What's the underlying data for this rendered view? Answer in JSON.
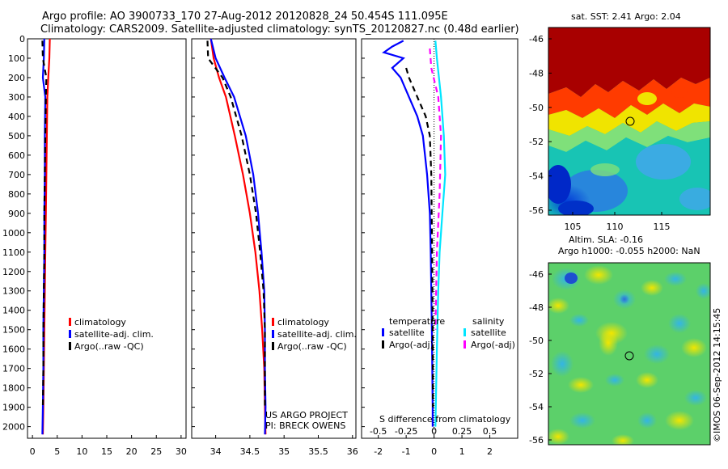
{
  "header": {
    "line1": "Argo profile: AO 3900733_170 27-Aug-2012 20120828_24 50.454S 111.095E",
    "line2": "Climatology: CARS2009. Satellite-adjusted climatology: synTS_20120827.nc (0.48d earlier)"
  },
  "colors": {
    "climatology": "#ff0000",
    "satellite": "#0000ff",
    "argo": "#000000",
    "salinity_satellite": "#00e5ff",
    "salinity_argo": "#ff00ff"
  },
  "depth_axis": {
    "ylim": [
      0,
      2060
    ],
    "ticks": [
      0,
      100,
      200,
      300,
      400,
      500,
      600,
      700,
      800,
      900,
      1000,
      1100,
      1200,
      1300,
      1400,
      1500,
      1600,
      1700,
      1800,
      1900,
      2000
    ]
  },
  "panels": {
    "temperature": {
      "legend": [
        "climatology",
        "satellite-adj. clim.",
        "Argo(..raw -QC)"
      ]
    },
    "salinity": {
      "legend": [
        "climatology",
        "satellite-adj. clim.",
        "Argo(..raw -QC)"
      ],
      "credit1": "US ARGO PROJECT",
      "credit2": "PI: BRECK OWENS"
    },
    "difference": {
      "legend_temperature_title": "temperature",
      "legend_temperature": [
        "satellite",
        "Argo(-adj)"
      ],
      "legend_salinity_title": "salinity",
      "legend_salinity": [
        "satellite",
        "Argo(-adj)"
      ],
      "s_axis_label": "S difference from climatology"
    }
  },
  "maps": {
    "sst_title": "sat. SST: 2.41  Argo: 2.04",
    "sla_title1": "Altim. SLA: -0.16",
    "sla_title2": "Argo h1000: -0.055 h2000: NaN",
    "lat_ticks": [
      "-46",
      "-48",
      "-50",
      "-52",
      "-54",
      "-56"
    ],
    "lon_ticks": [
      "105",
      "110",
      "115"
    ],
    "footer": "©IMOS 06-Sep-2012 14:15:45"
  },
  "chart_data": [
    {
      "type": "line",
      "title": "",
      "xlabel": "",
      "ylabel": "",
      "xlim": [
        -1,
        31
      ],
      "xticks": [
        0,
        5,
        10,
        15,
        20,
        25,
        30
      ],
      "ylim": [
        0,
        2060
      ],
      "y_inverted": true,
      "series": [
        {
          "name": "climatology",
          "style": "solid",
          "color": "#ff0000",
          "x": [
            3.5,
            3.4,
            3.2,
            3.0,
            2.9,
            2.8,
            2.7,
            2.6,
            2.5,
            2.4,
            2.3,
            2.2,
            2.1
          ],
          "y": [
            0,
            100,
            200,
            300,
            500,
            700,
            900,
            1100,
            1300,
            1500,
            1700,
            1900,
            2040
          ]
        },
        {
          "name": "satellite-adj. clim.",
          "style": "solid",
          "color": "#0000ff",
          "x": [
            2.4,
            2.3,
            2.1,
            2.6,
            2.5,
            2.5,
            2.4,
            2.4,
            2.3,
            2.2,
            2.2,
            2.1,
            2.0
          ],
          "y": [
            0,
            100,
            200,
            300,
            500,
            700,
            900,
            1100,
            1300,
            1500,
            1700,
            1900,
            2040
          ]
        },
        {
          "name": "Argo(..raw -QC)",
          "style": "dash",
          "color": "#000000",
          "x": [
            2.0,
            2.1,
            2.8,
            2.7,
            2.6,
            2.5,
            2.4,
            2.4,
            2.3,
            2.2,
            2.2,
            2.1
          ],
          "y": [
            10,
            100,
            200,
            300,
            500,
            700,
            900,
            1100,
            1300,
            1500,
            1700,
            1900
          ]
        }
      ]
    },
    {
      "type": "line",
      "title": "",
      "xlabel": "",
      "ylabel": "",
      "xlim": [
        33.65,
        36.05
      ],
      "xticks": [
        34,
        34.5,
        35,
        35.5,
        36
      ],
      "ylim": [
        0,
        2060
      ],
      "y_inverted": true,
      "series": [
        {
          "name": "climatology",
          "style": "solid",
          "color": "#ff0000",
          "x": [
            33.93,
            33.97,
            34.05,
            34.15,
            34.28,
            34.4,
            34.5,
            34.58,
            34.64,
            34.68,
            34.71,
            34.72,
            34.73
          ],
          "y": [
            0,
            100,
            200,
            300,
            500,
            700,
            900,
            1100,
            1300,
            1500,
            1700,
            1900,
            2040
          ]
        },
        {
          "name": "satellite-adj. clim.",
          "style": "solid",
          "color": "#0000ff",
          "x": [
            33.93,
            34.0,
            34.13,
            34.27,
            34.44,
            34.55,
            34.62,
            34.67,
            34.71,
            34.72,
            34.72,
            34.73,
            34.72
          ],
          "y": [
            0,
            100,
            200,
            300,
            500,
            700,
            900,
            1100,
            1300,
            1500,
            1700,
            1900,
            2040
          ]
        },
        {
          "name": "Argo(..raw -QC)",
          "style": "dash",
          "color": "#000000",
          "x": [
            33.88,
            33.89,
            34.1,
            34.22,
            34.38,
            34.5,
            34.59,
            34.65,
            34.7,
            34.72,
            34.72,
            34.72
          ],
          "y": [
            10,
            100,
            200,
            300,
            500,
            700,
            900,
            1100,
            1300,
            1500,
            1700,
            1900
          ]
        }
      ]
    },
    {
      "type": "line",
      "title": "",
      "xlabel": "",
      "ylabel": "",
      "xlim": [
        -2.6,
        3.0
      ],
      "xticks": [
        -2,
        -1,
        0,
        1,
        2
      ],
      "s_ticks": [
        "-0.5",
        "-0.25",
        "0",
        "0.25",
        "0.5"
      ],
      "ylim": [
        0,
        2060
      ],
      "y_inverted": true,
      "series": [
        {
          "name": "temperature satellite",
          "style": "solid",
          "color": "#0000ff",
          "x": [
            -1.1,
            -1.5,
            -1.8,
            -1.1,
            -1.5,
            -1.2,
            -0.9,
            -0.6,
            -0.4,
            -0.25,
            -0.15,
            -0.12,
            -0.08,
            -0.05,
            -0.05
          ],
          "y": [
            10,
            40,
            70,
            100,
            150,
            200,
            300,
            400,
            500,
            700,
            900,
            1100,
            1500,
            1900,
            2000
          ]
        },
        {
          "name": "temperature Argo(-adj)",
          "style": "dash",
          "color": "#000000",
          "x": [
            -1.0,
            -0.9,
            -0.6,
            -0.3,
            -0.15,
            -0.1,
            -0.07,
            -0.05,
            -0.04
          ],
          "y": [
            150,
            200,
            300,
            400,
            500,
            700,
            1100,
            1500,
            1900
          ]
        },
        {
          "name": "salinity satellite",
          "style": "solid",
          "color": "#00e5ff",
          "x": [
            0.05,
            0.1,
            0.25,
            0.35,
            0.4,
            0.3,
            0.2,
            0.15,
            0.1,
            0.05
          ],
          "y": [
            10,
            100,
            300,
            500,
            700,
            900,
            1100,
            1300,
            1600,
            2000
          ]
        },
        {
          "name": "salinity Argo(-adj)",
          "style": "dash",
          "color": "#ff00ff",
          "x": [
            -0.15,
            -0.1,
            0.15,
            0.25,
            0.2,
            0.1,
            0.05
          ],
          "y": [
            50,
            150,
            300,
            500,
            800,
            1100,
            1500
          ]
        }
      ]
    }
  ]
}
